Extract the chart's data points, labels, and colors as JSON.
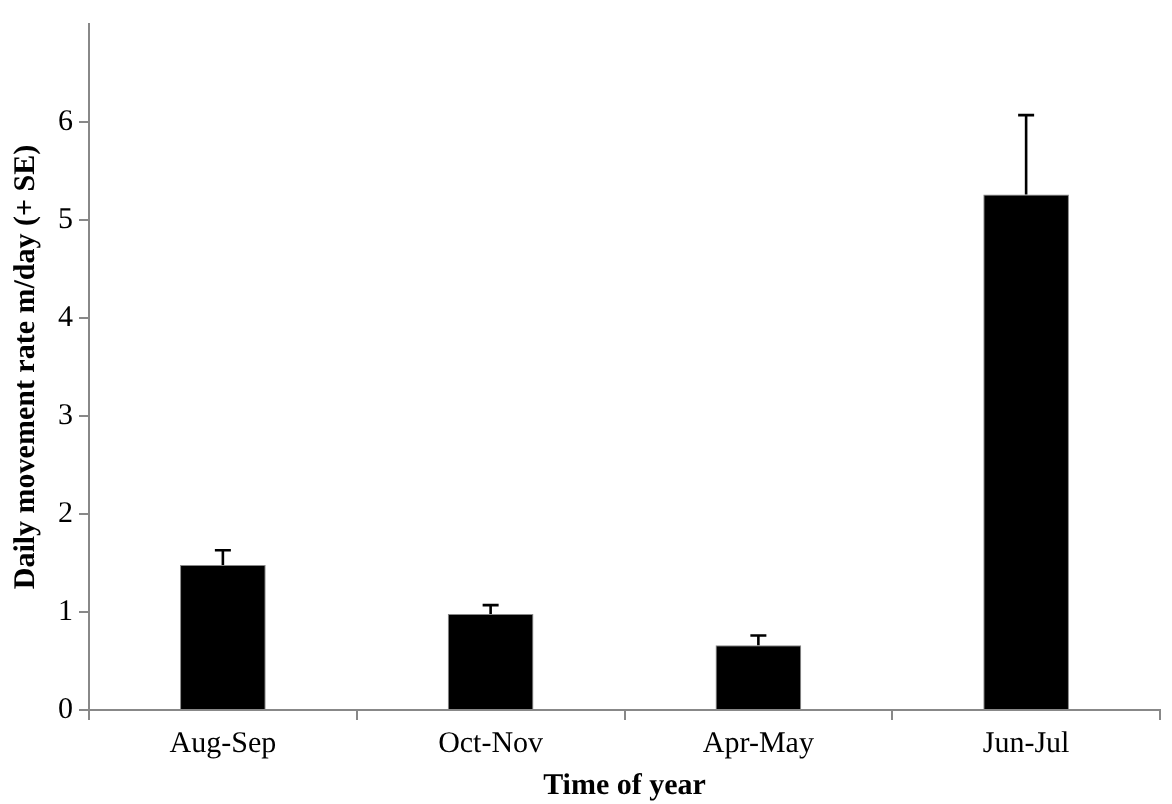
{
  "chart_data": {
    "type": "bar",
    "xlabel": "Time of year",
    "ylabel": "Daily movement rate m/day (+ SE)",
    "categories": [
      "Aug-Sep",
      "Oct-Nov",
      "Apr-May",
      "Jun-Jul"
    ],
    "values": [
      1.48,
      0.98,
      0.66,
      5.26
    ],
    "errors": [
      [
        1.48,
        1.63
      ],
      [
        0.98,
        1.07
      ],
      [
        0.66,
        0.76
      ],
      [
        5.26,
        6.07
      ]
    ],
    "color": "#000000",
    "ylim": [
      0,
      7
    ],
    "yticks": [
      0,
      1,
      2,
      3,
      4,
      5,
      6
    ],
    "grid": false,
    "legend": false
  }
}
